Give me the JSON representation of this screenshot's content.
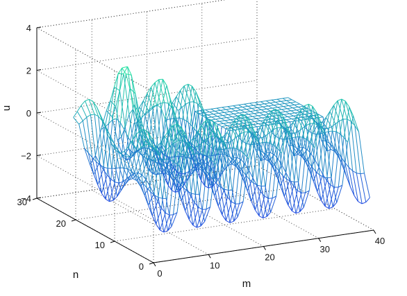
{
  "chart_data": {
    "type": "surface",
    "style": "mesh",
    "xlabel": "m",
    "ylabel": "n",
    "zlabel": "u",
    "xlim": [
      0,
      40
    ],
    "ylim": [
      0,
      30
    ],
    "zlim": [
      -4,
      4
    ],
    "xticks": [
      "0",
      "10",
      "20",
      "30",
      "40"
    ],
    "yticks": [
      "0",
      "10",
      "20",
      "30"
    ],
    "zticks": [
      "−4",
      "−2",
      "0",
      "2",
      "4"
    ],
    "grid": true,
    "colormap": "winter",
    "colormap_low": "#1f3fe6",
    "colormap_high": "#22e6a0",
    "surface": {
      "m_range": [
        1,
        40
      ],
      "n_range": [
        1,
        22
      ],
      "flat_region_m": [
        23,
        40
      ],
      "flat_region_n": [
        13,
        22
      ],
      "description_note": null,
      "approx_values": [
        {
          "m": 9,
          "n": 18,
          "u": 2.9
        },
        {
          "m": 12,
          "n": 15,
          "u": 1.6
        },
        {
          "m": 15,
          "n": 18,
          "u": -0.7
        },
        {
          "m": 33,
          "n": 8,
          "u": 0.4
        },
        {
          "m": 28,
          "n": 6,
          "u": -2.8
        },
        {
          "m": 13,
          "n": 8,
          "u": -3.7
        }
      ]
    }
  }
}
